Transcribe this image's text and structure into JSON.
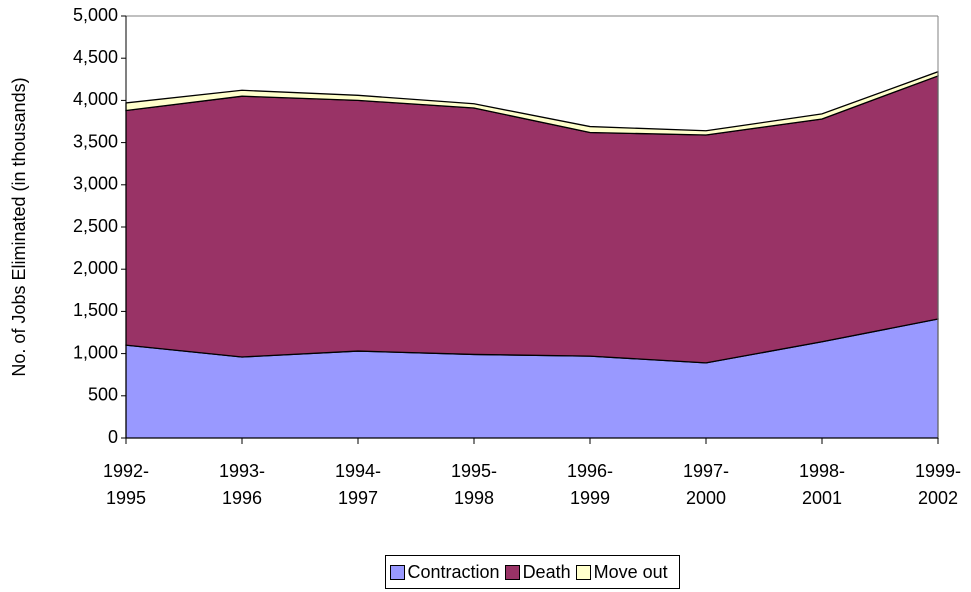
{
  "chart_data": {
    "type": "stacked_area",
    "y_label": "No. of Jobs Eliminated (in thousands)",
    "categories": [
      "1992-1995",
      "1993-1996",
      "1994-1997",
      "1995-1998",
      "1996-1999",
      "1997-2000",
      "1998-2001",
      "1999-2002"
    ],
    "series": [
      {
        "name": "Contraction",
        "color": "#9999ff",
        "values": [
          1100,
          960,
          1030,
          990,
          970,
          890,
          1140,
          1410
        ]
      },
      {
        "name": "Death",
        "color": "#993366",
        "values": [
          2780,
          3090,
          2970,
          2920,
          2650,
          2700,
          2640,
          2880
        ]
      },
      {
        "name": "Move out",
        "color": "#ffffcc",
        "values": [
          90,
          70,
          60,
          50,
          70,
          50,
          60,
          50
        ]
      }
    ],
    "ylim": [
      0,
      5000
    ],
    "yticks": [
      0,
      500,
      {
        "value": 1000,
        "label": "1,000"
      },
      {
        "value": 1500,
        "label": "1,500"
      },
      {
        "value": 2000,
        "label": "2,000"
      },
      {
        "value": 2500,
        "label": "2,500"
      },
      {
        "value": 3000,
        "label": "3,000"
      },
      {
        "value": 3500,
        "label": "3,500"
      },
      {
        "value": 4000,
        "label": "4,000"
      },
      {
        "value": 4500,
        "label": "4,500"
      },
      {
        "value": 5000,
        "label": "5,000"
      }
    ],
    "legend": "bottom"
  }
}
